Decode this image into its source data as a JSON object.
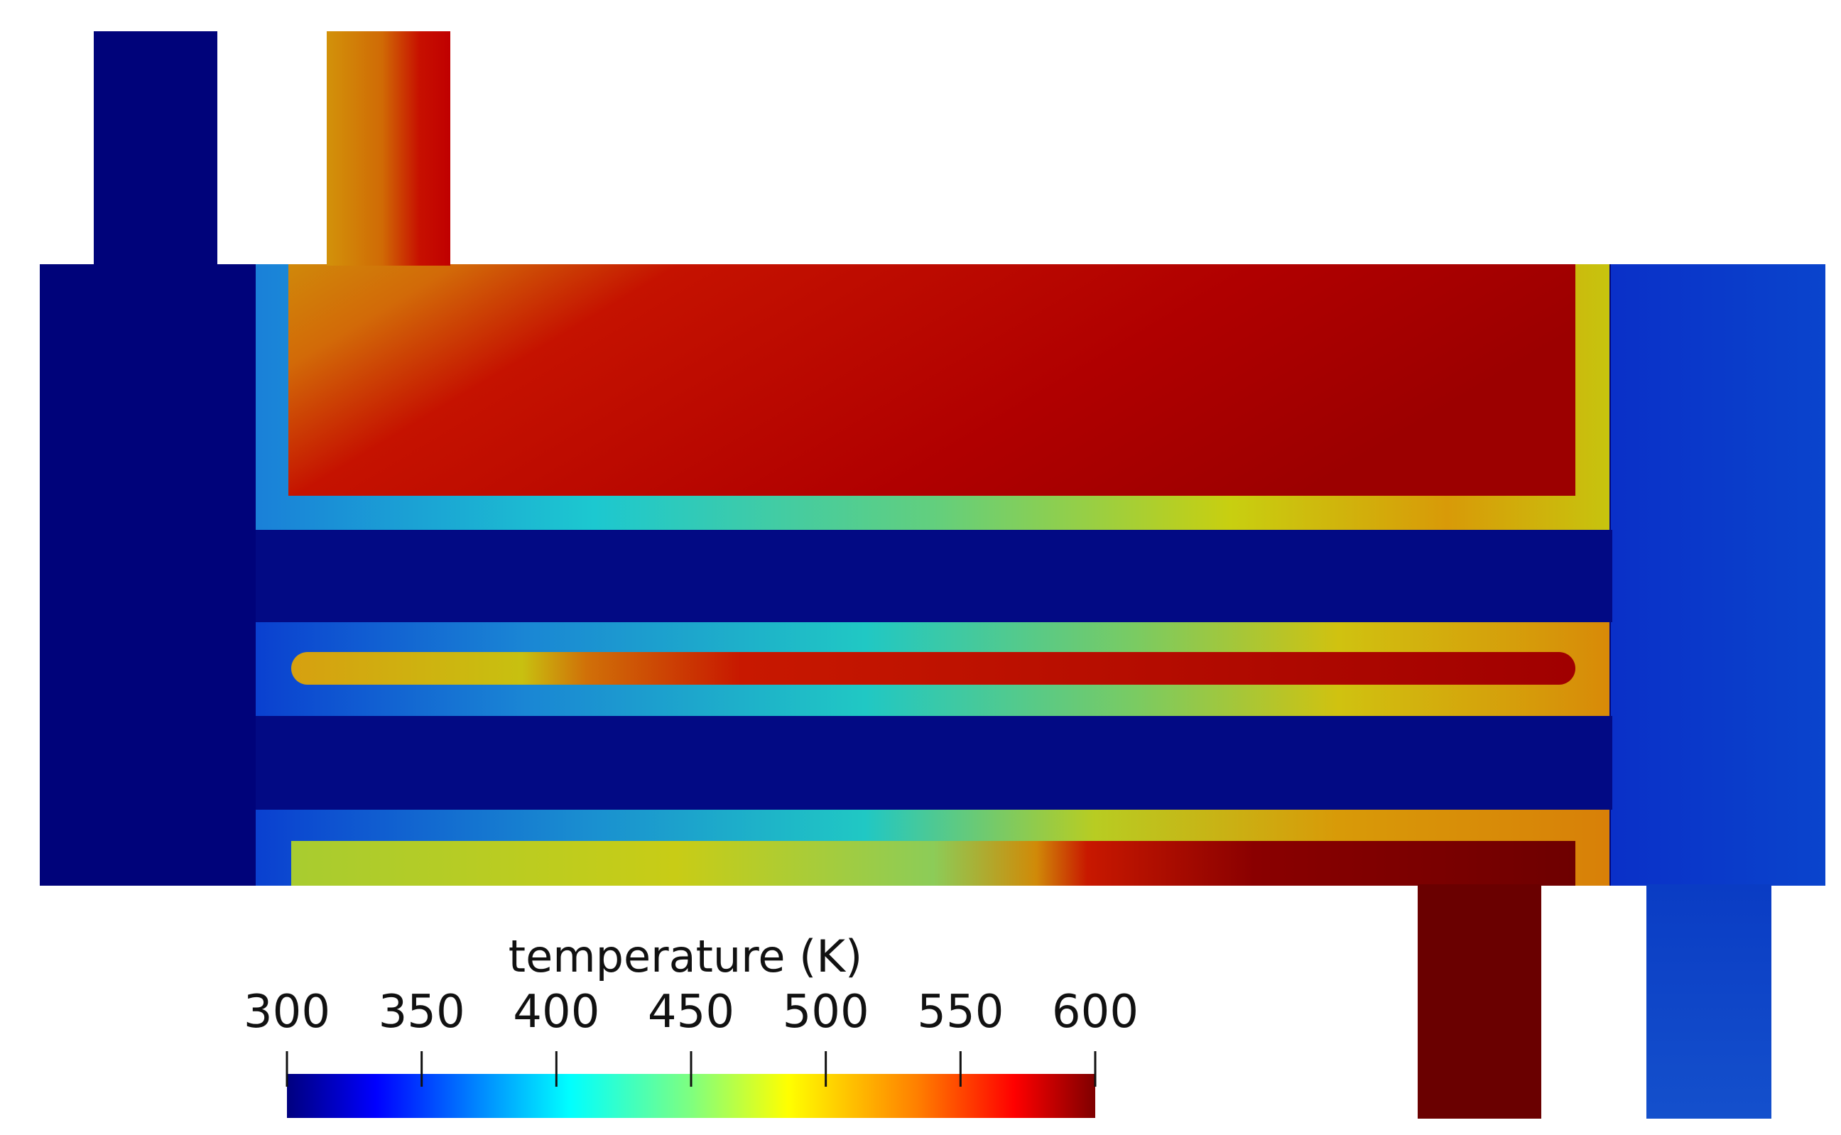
{
  "colorbar": {
    "title": "temperature (K)",
    "min": 300,
    "max": 600,
    "ticks": [
      "300",
      "350",
      "400",
      "450",
      "500",
      "550",
      "600"
    ],
    "colormap": "jet",
    "colors": [
      "#00007f",
      "#0000ff",
      "#00ffff",
      "#7fff7f",
      "#ffff00",
      "#ff7f00",
      "#ff0000",
      "#7f0000"
    ]
  },
  "field_colors": {
    "cold": "#00037a",
    "cold_outlet": "#0a3ec9",
    "wall_cool": "#1f8fd6",
    "hot": "#b30000",
    "hottest": "#6a0000",
    "warm": "#d98a00",
    "mid": "#cfcf1a"
  }
}
